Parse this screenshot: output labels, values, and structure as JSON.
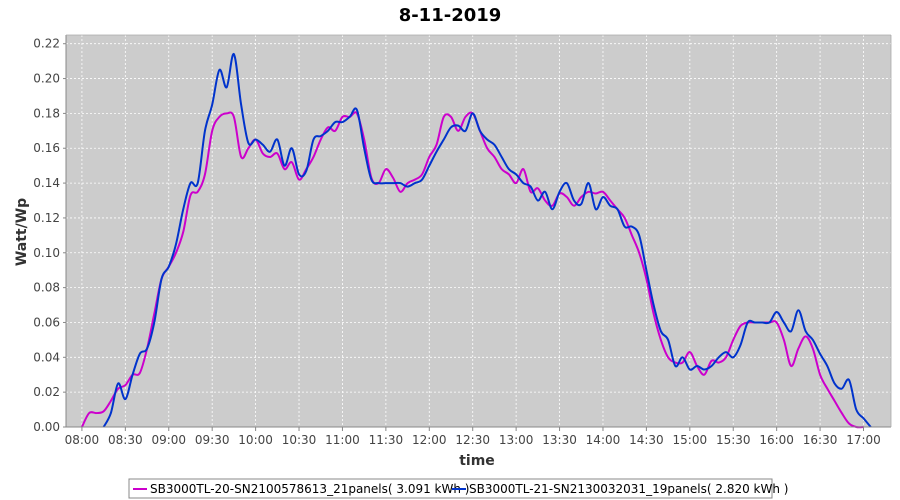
{
  "chart_data": {
    "type": "line",
    "title": "8-11-2019",
    "xlabel": "time",
    "ylabel": "Watt/Wp",
    "xlim": [
      "07:49",
      "17:19"
    ],
    "ylim": [
      0,
      0.225
    ],
    "x_ticks": [
      "08:00",
      "08:30",
      "09:00",
      "09:30",
      "10:00",
      "10:30",
      "11:00",
      "11:30",
      "12:00",
      "12:30",
      "13:00",
      "13:30",
      "14:00",
      "14:30",
      "15:00",
      "15:30",
      "16:00",
      "16:30",
      "17:00"
    ],
    "y_ticks": [
      "0.00",
      "0.02",
      "0.04",
      "0.06",
      "0.08",
      "0.10",
      "0.12",
      "0.14",
      "0.16",
      "0.18",
      "0.20",
      "0.22"
    ],
    "grid": true,
    "legend_position": "bottom",
    "series": [
      {
        "name": "SB3000TL-20-SN2100578613_21panels( 3.091 kWh )",
        "color": "#cc00cc",
        "x": [
          "08:00",
          "08:05",
          "08:10",
          "08:15",
          "08:20",
          "08:25",
          "08:30",
          "08:35",
          "08:40",
          "08:45",
          "08:50",
          "08:55",
          "09:00",
          "09:05",
          "09:10",
          "09:15",
          "09:20",
          "09:25",
          "09:30",
          "09:35",
          "09:40",
          "09:45",
          "09:50",
          "09:55",
          "10:00",
          "10:05",
          "10:10",
          "10:15",
          "10:20",
          "10:25",
          "10:30",
          "10:35",
          "10:40",
          "10:45",
          "10:50",
          "10:55",
          "11:00",
          "11:05",
          "11:10",
          "11:15",
          "11:20",
          "11:25",
          "11:30",
          "11:35",
          "11:40",
          "11:45",
          "11:50",
          "11:55",
          "12:00",
          "12:05",
          "12:10",
          "12:15",
          "12:20",
          "12:25",
          "12:30",
          "12:35",
          "12:40",
          "12:45",
          "12:50",
          "12:55",
          "13:00",
          "13:05",
          "13:10",
          "13:15",
          "13:20",
          "13:25",
          "13:30",
          "13:35",
          "13:40",
          "13:45",
          "13:50",
          "13:55",
          "14:00",
          "14:05",
          "14:10",
          "14:15",
          "14:20",
          "14:25",
          "14:30",
          "14:35",
          "14:40",
          "14:45",
          "14:50",
          "14:55",
          "15:00",
          "15:05",
          "15:10",
          "15:15",
          "15:20",
          "15:25",
          "15:30",
          "15:35",
          "15:40",
          "15:45",
          "15:50",
          "15:55",
          "16:00",
          "16:05",
          "16:10",
          "16:15",
          "16:20",
          "16:25",
          "16:30",
          "16:35",
          "16:40",
          "16:45",
          "16:50",
          "16:55",
          "17:00"
        ],
        "values": [
          0.0,
          0.008,
          0.008,
          0.009,
          0.015,
          0.022,
          0.024,
          0.03,
          0.031,
          0.045,
          0.065,
          0.085,
          0.092,
          0.1,
          0.112,
          0.133,
          0.135,
          0.145,
          0.17,
          0.178,
          0.18,
          0.178,
          0.155,
          0.16,
          0.165,
          0.157,
          0.155,
          0.157,
          0.148,
          0.152,
          0.142,
          0.148,
          0.155,
          0.165,
          0.172,
          0.17,
          0.178,
          0.178,
          0.18,
          0.165,
          0.143,
          0.14,
          0.148,
          0.143,
          0.135,
          0.14,
          0.142,
          0.145,
          0.155,
          0.162,
          0.178,
          0.178,
          0.17,
          0.178,
          0.18,
          0.17,
          0.16,
          0.155,
          0.148,
          0.145,
          0.14,
          0.148,
          0.135,
          0.137,
          0.13,
          0.127,
          0.134,
          0.132,
          0.127,
          0.132,
          0.135,
          0.134,
          0.135,
          0.13,
          0.125,
          0.12,
          0.11,
          0.1,
          0.085,
          0.065,
          0.05,
          0.04,
          0.037,
          0.037,
          0.043,
          0.035,
          0.03,
          0.038,
          0.037,
          0.04,
          0.05,
          0.058,
          0.06,
          0.06,
          0.06,
          0.06,
          0.06,
          0.05,
          0.035,
          0.045,
          0.052,
          0.045,
          0.03,
          0.022,
          0.015,
          0.008,
          0.002,
          0.0,
          0.0
        ]
      },
      {
        "name": "SB3000TL-21-SN2130032031_19panels( 2.820 kWh )",
        "color": "#0033cc",
        "x": [
          "08:15",
          "08:20",
          "08:25",
          "08:30",
          "08:35",
          "08:40",
          "08:45",
          "08:50",
          "08:55",
          "09:00",
          "09:05",
          "09:10",
          "09:15",
          "09:20",
          "09:25",
          "09:30",
          "09:35",
          "09:40",
          "09:45",
          "09:50",
          "09:55",
          "10:00",
          "10:05",
          "10:10",
          "10:15",
          "10:20",
          "10:25",
          "10:30",
          "10:35",
          "10:40",
          "10:45",
          "10:50",
          "10:55",
          "11:00",
          "11:05",
          "11:10",
          "11:15",
          "11:20",
          "11:25",
          "11:30",
          "11:35",
          "11:40",
          "11:45",
          "11:50",
          "11:55",
          "12:00",
          "12:05",
          "12:10",
          "12:15",
          "12:20",
          "12:25",
          "12:30",
          "12:35",
          "12:40",
          "12:45",
          "12:50",
          "12:55",
          "13:00",
          "13:05",
          "13:10",
          "13:15",
          "13:20",
          "13:25",
          "13:30",
          "13:35",
          "13:40",
          "13:45",
          "13:50",
          "13:55",
          "14:00",
          "14:05",
          "14:10",
          "14:15",
          "14:20",
          "14:25",
          "14:30",
          "14:35",
          "14:40",
          "14:45",
          "14:50",
          "14:55",
          "15:00",
          "15:05",
          "15:10",
          "15:15",
          "15:20",
          "15:25",
          "15:30",
          "15:35",
          "15:40",
          "15:45",
          "15:50",
          "15:55",
          "16:00",
          "16:05",
          "16:10",
          "16:15",
          "16:20",
          "16:25",
          "16:30",
          "16:35",
          "16:40",
          "16:45",
          "16:50",
          "16:55",
          "17:00",
          "17:05"
        ],
        "values": [
          0.0,
          0.008,
          0.025,
          0.016,
          0.03,
          0.042,
          0.045,
          0.06,
          0.085,
          0.092,
          0.105,
          0.125,
          0.14,
          0.14,
          0.17,
          0.185,
          0.205,
          0.195,
          0.214,
          0.185,
          0.163,
          0.165,
          0.162,
          0.158,
          0.165,
          0.15,
          0.16,
          0.145,
          0.147,
          0.165,
          0.167,
          0.17,
          0.175,
          0.175,
          0.178,
          0.182,
          0.16,
          0.142,
          0.14,
          0.14,
          0.14,
          0.14,
          0.138,
          0.14,
          0.142,
          0.15,
          0.158,
          0.165,
          0.172,
          0.173,
          0.17,
          0.18,
          0.17,
          0.165,
          0.162,
          0.155,
          0.148,
          0.145,
          0.14,
          0.138,
          0.13,
          0.135,
          0.125,
          0.135,
          0.14,
          0.13,
          0.128,
          0.14,
          0.125,
          0.132,
          0.127,
          0.125,
          0.115,
          0.115,
          0.11,
          0.09,
          0.07,
          0.055,
          0.05,
          0.035,
          0.04,
          0.033,
          0.035,
          0.033,
          0.035,
          0.04,
          0.043,
          0.04,
          0.047,
          0.06,
          0.06,
          0.06,
          0.06,
          0.066,
          0.06,
          0.055,
          0.067,
          0.055,
          0.05,
          0.042,
          0.035,
          0.025,
          0.022,
          0.027,
          0.01,
          0.005,
          0.0
        ]
      }
    ]
  },
  "colors": {
    "plot_background": "#cccccc",
    "grid": "#ffffff",
    "page_background": "#ffffff"
  }
}
